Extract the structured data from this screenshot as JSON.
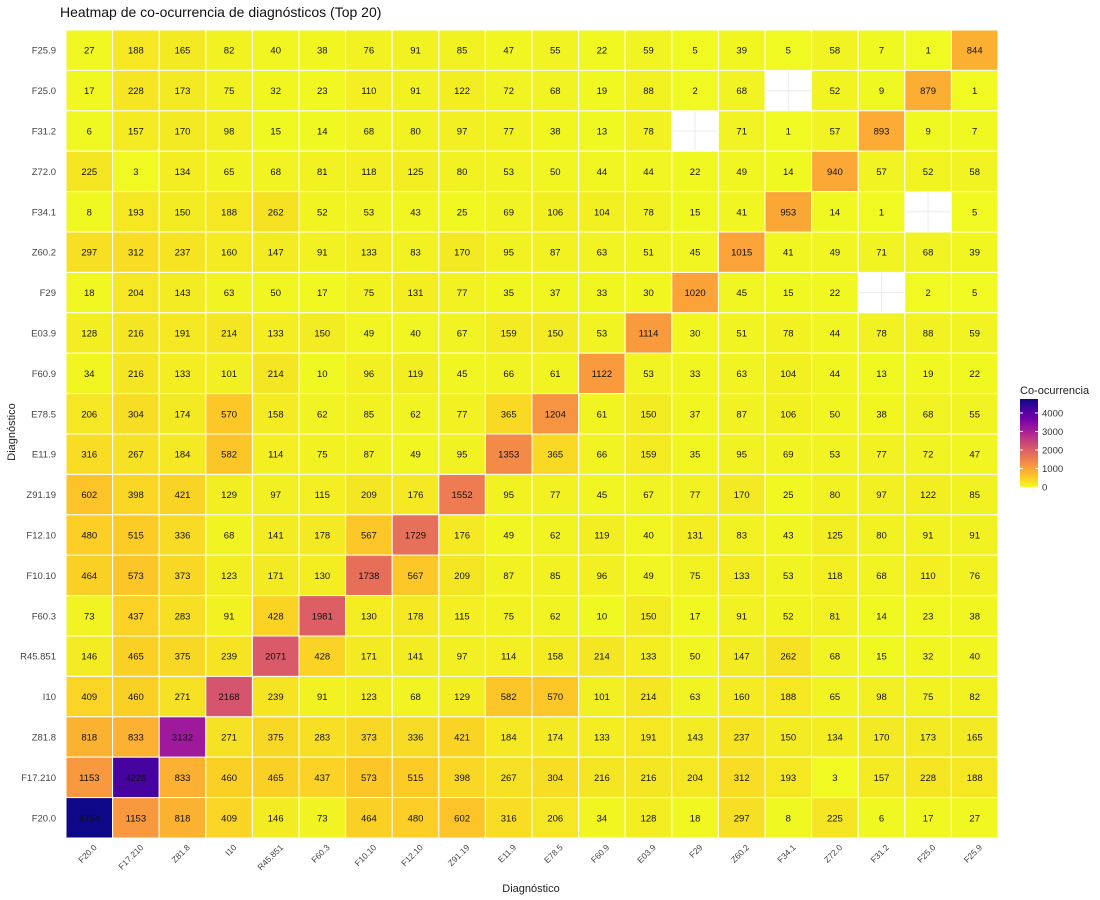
{
  "chart_data": {
    "type": "heatmap",
    "title": "Heatmap de co-ocurrencia de diagnósticos (Top 20)",
    "xlabel": "Diagnóstico",
    "ylabel": "Diagnóstico",
    "x_categories": [
      "F20.0",
      "F17.210",
      "Z81.8",
      "I10",
      "R45.851",
      "F60.3",
      "F10.10",
      "F12.10",
      "Z91.19",
      "E11.9",
      "E78.5",
      "F60.9",
      "E03.9",
      "F29",
      "Z60.2",
      "F34.1",
      "Z72.0",
      "F31.2",
      "F25.0",
      "F25.9"
    ],
    "y_categories_top_to_bottom": [
      "F25.9",
      "F25.0",
      "F31.2",
      "Z72.0",
      "F34.1",
      "Z60.2",
      "F29",
      "E03.9",
      "F60.9",
      "E78.5",
      "E11.9",
      "Z91.19",
      "F12.10",
      "F10.10",
      "F60.3",
      "R45.851",
      "I10",
      "Z81.8",
      "F17.210",
      "F20.0"
    ],
    "values": [
      [
        27,
        188,
        165,
        82,
        40,
        38,
        76,
        91,
        85,
        47,
        55,
        22,
        59,
        5,
        39,
        5,
        58,
        7,
        1,
        844
      ],
      [
        17,
        228,
        173,
        75,
        32,
        23,
        110,
        91,
        122,
        72,
        68,
        19,
        88,
        2,
        68,
        null,
        52,
        9,
        879,
        1
      ],
      [
        6,
        157,
        170,
        98,
        15,
        14,
        68,
        80,
        97,
        77,
        38,
        13,
        78,
        null,
        71,
        1,
        57,
        893,
        9,
        7
      ],
      [
        225,
        3,
        134,
        65,
        68,
        81,
        118,
        125,
        80,
        53,
        50,
        44,
        44,
        22,
        49,
        14,
        940,
        57,
        52,
        58
      ],
      [
        8,
        193,
        150,
        188,
        262,
        52,
        53,
        43,
        25,
        69,
        106,
        104,
        78,
        15,
        41,
        953,
        14,
        1,
        null,
        5
      ],
      [
        297,
        312,
        237,
        160,
        147,
        91,
        133,
        83,
        170,
        95,
        87,
        63,
        51,
        45,
        1015,
        41,
        49,
        71,
        68,
        39
      ],
      [
        18,
        204,
        143,
        63,
        50,
        17,
        75,
        131,
        77,
        35,
        37,
        33,
        30,
        1020,
        45,
        15,
        22,
        null,
        2,
        5
      ],
      [
        128,
        216,
        191,
        214,
        133,
        150,
        49,
        40,
        67,
        159,
        150,
        53,
        1114,
        30,
        51,
        78,
        44,
        78,
        88,
        59
      ],
      [
        34,
        216,
        133,
        101,
        214,
        10,
        96,
        119,
        45,
        66,
        61,
        1122,
        53,
        33,
        63,
        104,
        44,
        13,
        19,
        22
      ],
      [
        206,
        304,
        174,
        570,
        158,
        62,
        85,
        62,
        77,
        365,
        1204,
        61,
        150,
        37,
        87,
        106,
        50,
        38,
        68,
        55
      ],
      [
        316,
        267,
        184,
        582,
        114,
        75,
        87,
        49,
        95,
        1353,
        365,
        66,
        159,
        35,
        95,
        69,
        53,
        77,
        72,
        47
      ],
      [
        602,
        398,
        421,
        129,
        97,
        115,
        209,
        176,
        1552,
        95,
        77,
        45,
        67,
        77,
        170,
        25,
        80,
        97,
        122,
        85
      ],
      [
        480,
        515,
        336,
        68,
        141,
        178,
        567,
        1729,
        176,
        49,
        62,
        119,
        40,
        131,
        83,
        43,
        125,
        80,
        91,
        91
      ],
      [
        464,
        573,
        373,
        123,
        171,
        130,
        1738,
        567,
        209,
        87,
        85,
        96,
        49,
        75,
        133,
        53,
        118,
        68,
        110,
        76
      ],
      [
        73,
        437,
        283,
        91,
        428,
        1981,
        130,
        178,
        115,
        75,
        62,
        10,
        150,
        17,
        91,
        52,
        81,
        14,
        23,
        38
      ],
      [
        146,
        465,
        375,
        239,
        2071,
        428,
        171,
        141,
        97,
        114,
        158,
        214,
        133,
        50,
        147,
        262,
        68,
        15,
        32,
        40
      ],
      [
        409,
        460,
        271,
        2168,
        239,
        91,
        123,
        68,
        129,
        582,
        570,
        101,
        214,
        63,
        160,
        188,
        65,
        98,
        75,
        82
      ],
      [
        818,
        833,
        3132,
        271,
        375,
        283,
        373,
        336,
        421,
        184,
        174,
        133,
        191,
        143,
        237,
        150,
        134,
        170,
        173,
        165
      ],
      [
        1153,
        4228,
        833,
        460,
        465,
        437,
        573,
        515,
        398,
        267,
        304,
        216,
        216,
        204,
        312,
        193,
        3,
        157,
        228,
        188
      ],
      [
        4754,
        1153,
        818,
        409,
        146,
        73,
        464,
        480,
        602,
        316,
        206,
        34,
        128,
        18,
        297,
        8,
        225,
        6,
        17,
        27
      ]
    ],
    "color_scale": {
      "name": "plasma-reversed",
      "min": 0,
      "max": 4754,
      "stops": [
        "#f0f921",
        "#fdca26",
        "#fb9f3a",
        "#ed7953",
        "#d8576b",
        "#bd3786",
        "#9c179e",
        "#7201a8",
        "#46039f",
        "#0d0887"
      ]
    },
    "legend": {
      "title": "Co-ocurrencia",
      "ticks": [
        0,
        1000,
        2000,
        3000,
        4000
      ],
      "tick_labels": [
        "0",
        "1000",
        "2000",
        "3000",
        "4000"
      ],
      "position": "right"
    }
  }
}
